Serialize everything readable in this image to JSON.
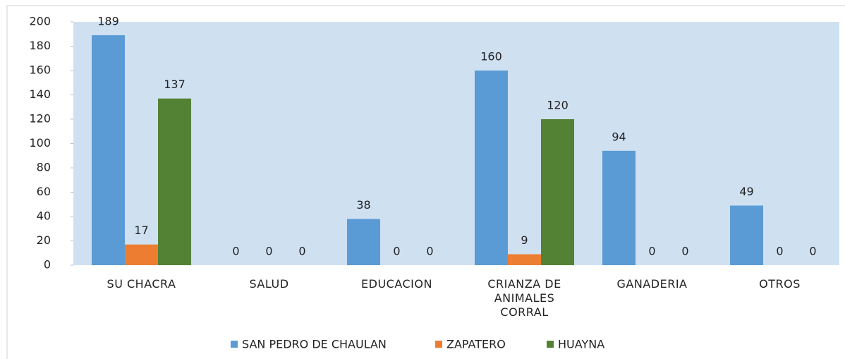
{
  "chart_data": {
    "type": "bar",
    "categories": [
      "SU CHACRA",
      "SALUD",
      "EDUCACION",
      "CRIANZA DE ANIMALES CORRAL",
      "GANADERIA",
      "OTROS"
    ],
    "series": [
      {
        "name": "SAN PEDRO DE CHAULAN",
        "color": "#5b9bd5",
        "values": [
          189,
          0,
          38,
          160,
          94,
          49
        ]
      },
      {
        "name": "ZAPATERO",
        "color": "#ed7d31",
        "values": [
          17,
          0,
          0,
          9,
          0,
          0
        ]
      },
      {
        "name": "HUAYNA",
        "color": "#548235",
        "values": [
          137,
          0,
          0,
          120,
          0,
          0
        ]
      }
    ],
    "ylim": [
      0,
      200
    ],
    "yticks": [
      0,
      20,
      40,
      60,
      80,
      100,
      120,
      140,
      160,
      180,
      200
    ],
    "legend": "bottom",
    "plot_background": "#cfe0f1"
  }
}
